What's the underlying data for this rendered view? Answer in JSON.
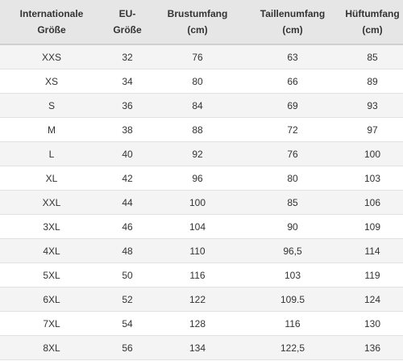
{
  "table": {
    "headers": [
      {
        "line1": "Internationale",
        "line2": "Größe"
      },
      {
        "line1": "EU-",
        "line2": "Größe"
      },
      {
        "line1": "Brustumfang",
        "line2": "(cm)"
      },
      {
        "line1": "Taillenumfang",
        "line2": "(cm)"
      },
      {
        "line1": "Hüftumfang",
        "line2": "(cm)"
      }
    ],
    "rows": [
      [
        "XXS",
        "32",
        "76",
        "63",
        "85"
      ],
      [
        "XS",
        "34",
        "80",
        "66",
        "89"
      ],
      [
        "S",
        "36",
        "84",
        "69",
        "93"
      ],
      [
        "M",
        "38",
        "88",
        "72",
        "97"
      ],
      [
        "L",
        "40",
        "92",
        "76",
        "100"
      ],
      [
        "XL",
        "42",
        "96",
        "80",
        "103"
      ],
      [
        "XXL",
        "44",
        "100",
        "85",
        "106"
      ],
      [
        "3XL",
        "46",
        "104",
        "90",
        "109"
      ],
      [
        "4XL",
        "48",
        "110",
        "96,5",
        "114"
      ],
      [
        "5XL",
        "50",
        "116",
        "103",
        "119"
      ],
      [
        "6XL",
        "52",
        "122",
        "109.5",
        "124"
      ],
      [
        "7XL",
        "54",
        "128",
        "116",
        "130"
      ],
      [
        "8XL",
        "56",
        "134",
        "122,5",
        "136"
      ]
    ]
  }
}
